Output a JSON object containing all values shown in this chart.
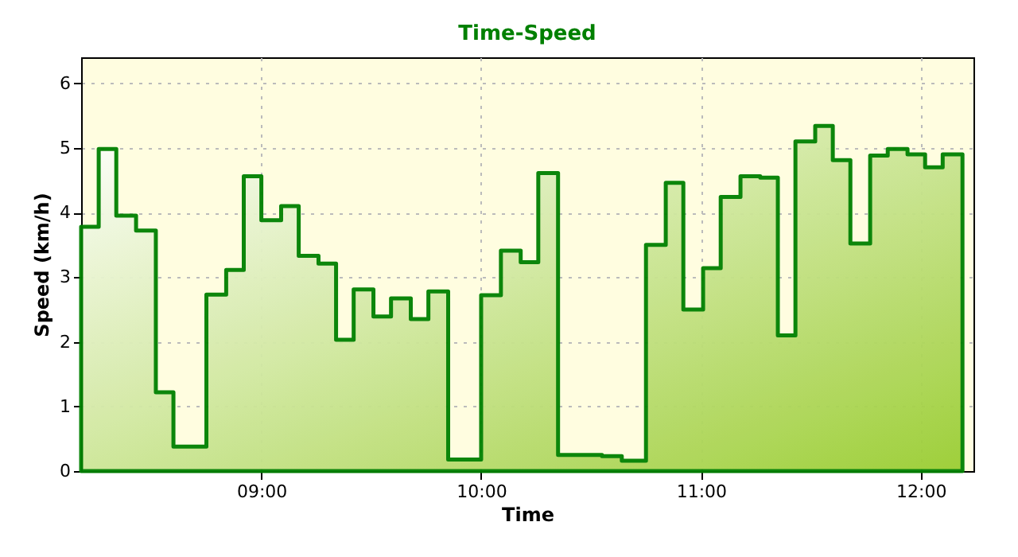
{
  "chart_data": {
    "type": "area",
    "title": "Time-Speed",
    "xlabel": "Time",
    "ylabel": "Speed (km/h)",
    "x": [
      8.18,
      8.26,
      8.34,
      8.43,
      8.52,
      8.6,
      8.75,
      8.84,
      8.92,
      9.0,
      9.09,
      9.17,
      9.26,
      9.34,
      9.42,
      9.51,
      9.59,
      9.68,
      9.76,
      9.85,
      10.0,
      10.09,
      10.18,
      10.26,
      10.35,
      10.55,
      10.64,
      10.75,
      10.84,
      10.92,
      11.01,
      11.09,
      11.18,
      11.27,
      11.35,
      11.43,
      11.52,
      11.6,
      11.68,
      11.77,
      11.85,
      11.94,
      12.02,
      12.1,
      12.19
    ],
    "series": [
      {
        "color": "#008000",
        "values": [
          3.78,
          4.98,
          3.95,
          3.72,
          1.22,
          0.38,
          2.73,
          3.11,
          4.56,
          3.88,
          4.1,
          3.33,
          3.21,
          2.03,
          2.81,
          2.39,
          2.67,
          2.35,
          2.78,
          0.18,
          2.72,
          3.41,
          3.23,
          4.61,
          0.25,
          0.23,
          0.16,
          3.5,
          4.46,
          2.5,
          3.14,
          4.24,
          4.56,
          4.54,
          2.1,
          5.1,
          5.34,
          4.81,
          3.52,
          4.88,
          4.98,
          4.9,
          4.7,
          4.9,
          4.9
        ]
      }
    ],
    "xlim": [
      8.18,
      12.24
    ],
    "xticks": [
      {
        "value": 9,
        "label": "09:00"
      },
      {
        "value": 10,
        "label": "10:00"
      },
      {
        "value": 11,
        "label": "11:00"
      },
      {
        "value": 12,
        "label": "12:00"
      }
    ],
    "ylim": [
      0,
      6.4
    ],
    "yticks": [
      0,
      1,
      2,
      3,
      4,
      5,
      6
    ],
    "grid": true,
    "line_style": "solid"
  }
}
